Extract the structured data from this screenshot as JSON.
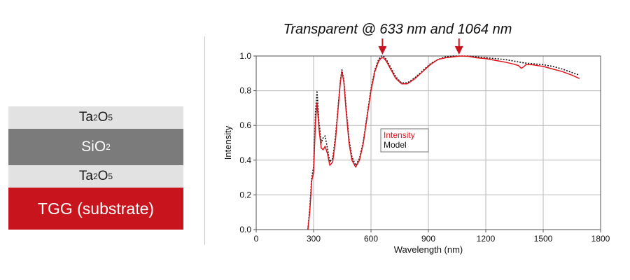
{
  "layers": [
    {
      "formula": [
        "Ta",
        "2",
        "O",
        "5"
      ],
      "color": "#e2e2e2",
      "text_color": "#1a1a1a"
    },
    {
      "formula": [
        "SiO",
        "2",
        "",
        ""
      ],
      "color": "#7b7b7b",
      "text_color": "#ffffff"
    },
    {
      "formula": [
        "Ta",
        "2",
        "O",
        "5"
      ],
      "color": "#e2e2e2",
      "text_color": "#1a1a1a"
    },
    {
      "formula": [
        "TGG (substrate)",
        "",
        "",
        ""
      ],
      "color": "#c8141c",
      "text_color": "#ffffff"
    }
  ],
  "chart_data": {
    "type": "line",
    "title": "Transparent @ 633 nm and 1064 nm",
    "xlabel": "Wavelength (nm)",
    "ylabel": "Intensity",
    "xlim": [
      0,
      1800
    ],
    "ylim": [
      0,
      1.0
    ],
    "xticks": [
      "0",
      "300",
      "600",
      "900",
      "1200",
      "1500",
      "1800"
    ],
    "yticks": [
      "0.0",
      "0.2",
      "0.4",
      "0.6",
      "0.8",
      "1.0"
    ],
    "grid": true,
    "legend": {
      "position": "center-left",
      "entries": [
        "Intensity",
        "Model"
      ]
    },
    "arrows_at": [
      660,
      1060
    ],
    "series": [
      {
        "name": "Intensity",
        "color": "#e0141c",
        "style": "solid",
        "x": [
          270,
          280,
          290,
          300,
          310,
          318,
          328,
          340,
          350,
          360,
          372,
          385,
          400,
          415,
          430,
          440,
          448,
          458,
          470,
          485,
          500,
          520,
          540,
          560,
          580,
          600,
          620,
          640,
          655,
          665,
          680,
          700,
          730,
          760,
          790,
          830,
          870,
          910,
          950,
          990,
          1030,
          1070,
          1110,
          1150,
          1200,
          1250,
          1300,
          1340,
          1370,
          1385,
          1395,
          1410,
          1440,
          1500,
          1550,
          1600,
          1650,
          1690
        ],
        "y": [
          0.0,
          0.1,
          0.28,
          0.33,
          0.62,
          0.73,
          0.58,
          0.47,
          0.46,
          0.48,
          0.44,
          0.37,
          0.39,
          0.52,
          0.72,
          0.85,
          0.91,
          0.85,
          0.68,
          0.5,
          0.4,
          0.36,
          0.4,
          0.5,
          0.65,
          0.8,
          0.91,
          0.97,
          0.99,
          0.99,
          0.97,
          0.93,
          0.87,
          0.84,
          0.84,
          0.87,
          0.91,
          0.95,
          0.98,
          0.99,
          0.995,
          1.0,
          0.998,
          0.99,
          0.985,
          0.975,
          0.965,
          0.955,
          0.945,
          0.93,
          0.935,
          0.95,
          0.95,
          0.94,
          0.925,
          0.91,
          0.89,
          0.87
        ]
      },
      {
        "name": "Model",
        "color": "#111111",
        "style": "dotted",
        "x": [
          270,
          280,
          290,
          300,
          310,
          318,
          328,
          340,
          350,
          360,
          372,
          385,
          400,
          415,
          430,
          440,
          448,
          458,
          470,
          485,
          500,
          520,
          540,
          560,
          580,
          600,
          620,
          640,
          655,
          665,
          680,
          700,
          730,
          760,
          790,
          830,
          870,
          910,
          950,
          990,
          1030,
          1070,
          1110,
          1150,
          1200,
          1250,
          1300,
          1350,
          1400,
          1450,
          1500,
          1550,
          1600,
          1650,
          1690
        ],
        "y": [
          0.0,
          0.12,
          0.3,
          0.36,
          0.68,
          0.8,
          0.62,
          0.5,
          0.53,
          0.54,
          0.47,
          0.39,
          0.41,
          0.54,
          0.73,
          0.86,
          0.92,
          0.86,
          0.7,
          0.52,
          0.42,
          0.37,
          0.41,
          0.51,
          0.66,
          0.81,
          0.92,
          0.98,
          1.0,
          1.0,
          0.98,
          0.94,
          0.88,
          0.845,
          0.845,
          0.875,
          0.915,
          0.955,
          0.98,
          0.995,
          1.0,
          1.0,
          1.0,
          0.995,
          0.99,
          0.985,
          0.98,
          0.97,
          0.96,
          0.955,
          0.95,
          0.94,
          0.925,
          0.905,
          0.89
        ]
      }
    ]
  }
}
